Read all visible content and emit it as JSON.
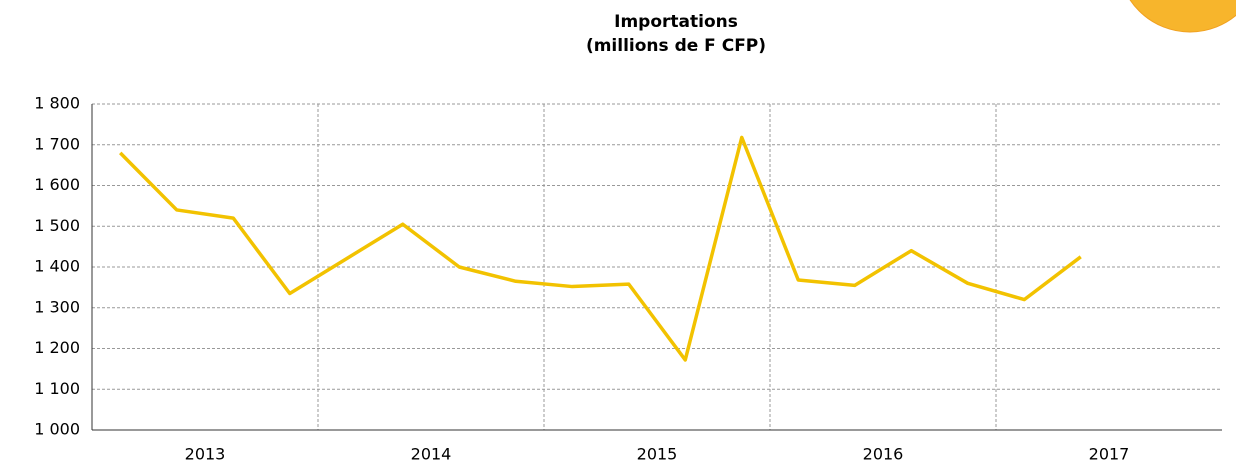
{
  "chart_data": {
    "type": "line",
    "title": "Importations",
    "subtitle": "(millions de F CFP)",
    "categories": [
      null,
      null,
      null,
      null,
      null,
      null,
      null,
      null,
      null,
      null,
      null,
      null,
      null,
      null,
      null,
      null,
      null,
      null
    ],
    "x_groups": [
      "2013",
      "2014",
      "2015",
      "2016",
      "2017"
    ],
    "series": [
      {
        "name": "Importations",
        "color": "#f2c200",
        "values": [
          1680,
          1540,
          1520,
          1335,
          1420,
          1505,
          1400,
          1365,
          1352,
          1358,
          1172,
          1718,
          1368,
          1355,
          1440,
          1360,
          1320,
          1425
        ]
      }
    ],
    "ylim": [
      1000,
      1800
    ],
    "yticks": [
      {
        "value": 1000,
        "label": "1 000"
      },
      {
        "value": 1100,
        "label": "1 100"
      },
      {
        "value": 1200,
        "label": "1 200"
      },
      {
        "value": 1300,
        "label": "1 300"
      },
      {
        "value": 1400,
        "label": "1 400"
      },
      {
        "value": 1500,
        "label": "1 500"
      },
      {
        "value": 1600,
        "label": "1 600"
      },
      {
        "value": 1700,
        "label": "1 700"
      },
      {
        "value": 1800,
        "label": "1 800"
      }
    ],
    "grid": true
  }
}
